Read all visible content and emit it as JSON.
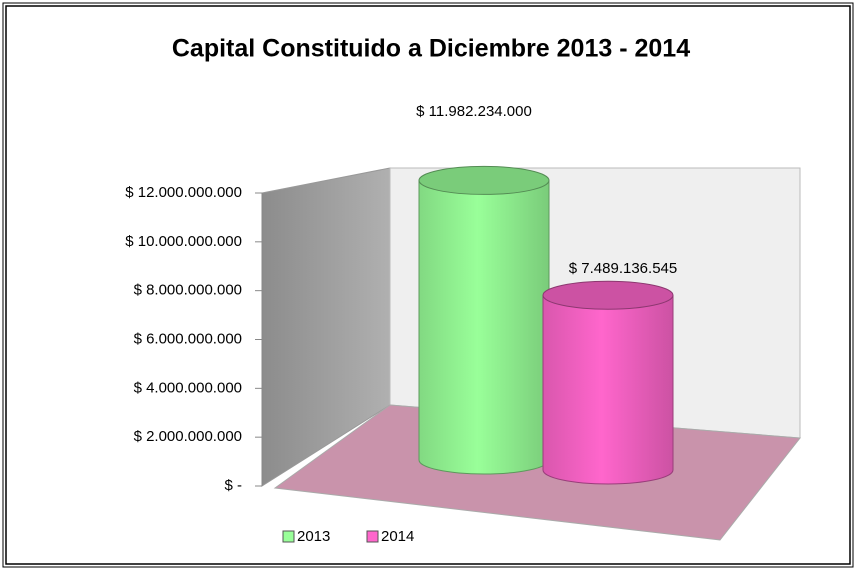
{
  "chart_data": {
    "type": "cylinder",
    "title": "Capital Constituido a Diciembre 2013 - 2014",
    "series": [
      {
        "name": "2013",
        "color": "#99ff99",
        "values": [
          11982234000
        ],
        "value_labels": [
          "$ 11.982.234.000"
        ]
      },
      {
        "name": "2014",
        "color": "#ff66cc",
        "values": [
          7489136545
        ],
        "value_labels": [
          "$ 7.489.136.545"
        ]
      }
    ],
    "ylim": [
      0,
      12000000000
    ],
    "yticks": [
      {
        "value": 0,
        "label": "$ -"
      },
      {
        "value": 2000000000,
        "label": "$ 2.000.000.000"
      },
      {
        "value": 4000000000,
        "label": "$ 4.000.000.000"
      },
      {
        "value": 6000000000,
        "label": "$ 6.000.000.000"
      },
      {
        "value": 8000000000,
        "label": "$ 8.000.000.000"
      },
      {
        "value": 10000000000,
        "label": "$ 10.000.000.000"
      },
      {
        "value": 12000000000,
        "label": "$ 12.000.000.000"
      }
    ],
    "legend": "bottom-left"
  }
}
